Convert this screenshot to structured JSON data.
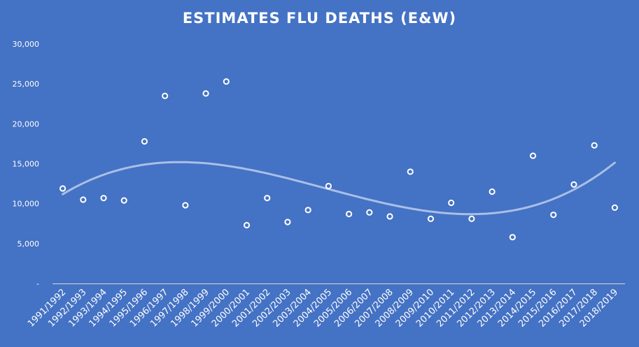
{
  "chart_data": {
    "type": "scatter",
    "title": "ESTIMATES FLU DEATHS (E&W)",
    "xlabel": "",
    "ylabel": "",
    "ylim": [
      0,
      30000
    ],
    "yticks": [
      "-",
      "5,000",
      "10,000",
      "15,000",
      "20,000",
      "25,000",
      "30,000"
    ],
    "grid": false,
    "trendline": "polynomial",
    "categories": [
      "1991/1992",
      "1992/1993",
      "1993/1994",
      "1994/1995",
      "1995/1996",
      "1996/1997",
      "1997/1998",
      "1998/1999",
      "1999/2000",
      "2000/2001",
      "2001/2002",
      "2002/2003",
      "2003/2004",
      "2004/2005",
      "2005/2006",
      "2006/2007",
      "2007/2008",
      "2008/2009",
      "2009/2010",
      "2010/2011",
      "2011/2012",
      "2012/2013",
      "2013/2014",
      "2014/2015",
      "2015/2016",
      "2016/2017",
      "2017/2018",
      "2018/2019"
    ],
    "values": [
      11900,
      10500,
      10700,
      10400,
      17800,
      23500,
      9800,
      23800,
      25300,
      7300,
      10700,
      7700,
      9200,
      12200,
      8700,
      8900,
      8400,
      14000,
      8100,
      10100,
      8100,
      11500,
      5800,
      16000,
      8600,
      12400,
      17300,
      9500
    ],
    "colors": {
      "background": "#4472c4",
      "marker_fill": "#4472c4",
      "marker_stroke": "#ffffff",
      "trend": "#a9bfe6"
    }
  }
}
